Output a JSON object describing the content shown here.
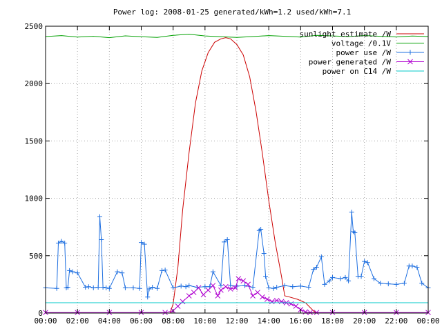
{
  "chart_data": {
    "type": "line",
    "title": "Power log: 2008-01-25 generated/kWh=1.2 used/kWh=7.1",
    "xlabel": "",
    "ylabel": "",
    "xlim": [
      0,
      24
    ],
    "ylim": [
      0,
      2500
    ],
    "grid": true,
    "legend_position": "top-right",
    "x_ticks": [
      "00:00",
      "02:00",
      "04:00",
      "06:00",
      "08:00",
      "10:00",
      "12:00",
      "14:00",
      "16:00",
      "18:00",
      "20:00",
      "22:00",
      "00:00"
    ],
    "y_ticks": [
      "0",
      "500",
      "1000",
      "1500",
      "2000",
      "2500"
    ],
    "series": [
      {
        "name": "sunlight estimate /W",
        "color": "#cc0000",
        "marker": "none",
        "x": [
          7.8,
          8.0,
          8.3,
          8.6,
          9.0,
          9.4,
          9.8,
          10.2,
          10.6,
          11.0,
          11.3,
          11.6,
          12.0,
          12.4,
          12.8,
          13.2,
          13.6,
          14.0,
          14.4,
          14.8,
          15.0,
          15.3,
          15.8,
          16.3,
          16.8,
          17.0
        ],
        "y": [
          0,
          80,
          400,
          900,
          1400,
          1830,
          2110,
          2270,
          2360,
          2390,
          2400,
          2390,
          2340,
          2250,
          2060,
          1760,
          1390,
          980,
          620,
          320,
          150,
          140,
          120,
          90,
          20,
          0
        ]
      },
      {
        "name": "voltage /0.1V",
        "color": "#00a000",
        "marker": "none",
        "x": [
          0,
          1,
          2,
          3,
          4,
          5,
          6,
          7,
          8,
          9,
          10,
          11,
          12,
          13,
          14,
          15,
          16,
          17,
          18,
          19,
          20,
          21,
          22,
          23,
          24
        ],
        "y": [
          2410,
          2418,
          2405,
          2412,
          2400,
          2416,
          2408,
          2402,
          2420,
          2430,
          2415,
          2408,
          2402,
          2410,
          2418,
          2412,
          2405,
          2420,
          2415,
          2410,
          2418,
          2412,
          2406,
          2414,
          2410
        ]
      },
      {
        "name": "power use /W",
        "color": "#1e6fe0",
        "marker": "plus",
        "x": [
          0.0,
          0.7,
          0.8,
          1.0,
          1.2,
          1.3,
          1.4,
          1.5,
          1.7,
          2.0,
          2.5,
          2.7,
          3.0,
          3.3,
          3.4,
          3.5,
          3.6,
          3.8,
          4.0,
          4.5,
          4.8,
          5.0,
          5.5,
          5.9,
          6.0,
          6.2,
          6.4,
          6.5,
          6.7,
          7.0,
          7.3,
          7.5,
          8.0,
          8.5,
          8.8,
          9.0,
          9.5,
          10.0,
          10.3,
          10.5,
          11.0,
          11.2,
          11.4,
          11.6,
          12.0,
          12.5,
          13.0,
          13.4,
          13.5,
          13.7,
          13.8,
          14.0,
          14.3,
          14.5,
          15.0,
          15.5,
          16.0,
          16.5,
          16.8,
          17.0,
          17.3,
          17.5,
          17.8,
          18.0,
          18.5,
          18.8,
          19.0,
          19.2,
          19.3,
          19.4,
          19.6,
          19.8,
          20.0,
          20.2,
          20.6,
          21.0,
          21.5,
          22.0,
          22.5,
          22.8,
          23.0,
          23.3,
          23.6,
          24.0
        ],
        "y": [
          220,
          215,
          610,
          625,
          610,
          220,
          225,
          370,
          360,
          350,
          225,
          230,
          220,
          225,
          840,
          640,
          225,
          220,
          215,
          360,
          350,
          220,
          220,
          215,
          615,
          600,
          140,
          210,
          225,
          215,
          370,
          375,
          220,
          235,
          230,
          240,
          225,
          230,
          230,
          360,
          240,
          620,
          640,
          240,
          235,
          240,
          225,
          720,
          730,
          520,
          320,
          220,
          215,
          225,
          240,
          230,
          235,
          225,
          380,
          400,
          490,
          250,
          280,
          310,
          300,
          310,
          280,
          880,
          710,
          700,
          320,
          320,
          450,
          440,
          300,
          260,
          255,
          250,
          260,
          410,
          410,
          400,
          260,
          220
        ]
      },
      {
        "name": "power generated /W",
        "color": "#b000d0",
        "marker": "x",
        "x": [
          0,
          2,
          4,
          6,
          7.5,
          8.0,
          8.3,
          8.6,
          9.0,
          9.3,
          9.6,
          9.9,
          10.2,
          10.5,
          10.8,
          11.0,
          11.3,
          11.6,
          11.9,
          12.1,
          12.4,
          12.7,
          13.0,
          13.3,
          13.6,
          13.9,
          14.2,
          14.5,
          14.8,
          15.1,
          15.4,
          15.7,
          16.0,
          16.3,
          16.6,
          17.0,
          18,
          20,
          22,
          24
        ],
        "y": [
          5,
          5,
          5,
          5,
          5,
          20,
          60,
          100,
          150,
          180,
          220,
          160,
          200,
          240,
          150,
          200,
          230,
          210,
          220,
          300,
          280,
          250,
          150,
          180,
          140,
          120,
          100,
          110,
          100,
          90,
          80,
          60,
          30,
          10,
          5,
          5,
          5,
          5,
          5,
          5
        ]
      },
      {
        "name": "power on C14 /W",
        "color": "#00c8c8",
        "marker": "none",
        "x": [
          0,
          24
        ],
        "y": [
          90,
          90
        ]
      }
    ]
  }
}
